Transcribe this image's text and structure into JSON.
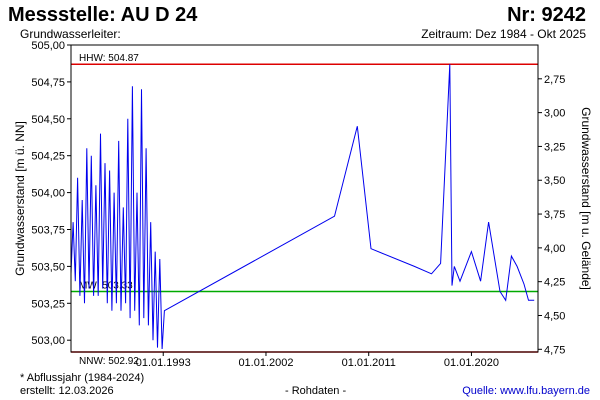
{
  "header": {
    "title": "Messstelle: AU D 24",
    "number": "Nr: 9242",
    "subtitle_left": "Grundwasserleiter:",
    "subtitle_right": "Zeitraum: Dez 1984 - Okt 2025"
  },
  "footer": {
    "note": "* Abflussjahr (1984-2024)",
    "created_label": "erstellt:",
    "created_date": "12.03.2026",
    "raw_label": "- Rohdaten -",
    "source_label": "Quelle:",
    "source_url": "www.lfu.bayern.de"
  },
  "colors": {
    "series": "#0000ee",
    "hhw": "#dd0000",
    "nnw": "#dd0000",
    "mw": "#00aa00",
    "axes": "#000000"
  },
  "chart_data": {
    "type": "line",
    "ylabel": "Grundwasserstand [m ü. NN]",
    "y2label": "Grundwasserstand [m u. Gelände]",
    "ylim": [
      502.92,
      505.0
    ],
    "y2lim": [
      2.5,
      4.77
    ],
    "yticks": [
      "505,00",
      "504,75",
      "504,50",
      "504,25",
      "504,00",
      "503,75",
      "503,50",
      "503,25",
      "503,00"
    ],
    "yticks_values": [
      505.0,
      504.75,
      504.5,
      504.25,
      504.0,
      503.75,
      503.5,
      503.25,
      503.0
    ],
    "y2ticks": [
      "2,75",
      "3,00",
      "3,25",
      "3,50",
      "3,75",
      "4,00",
      "4,25",
      "4,50",
      "4,75"
    ],
    "y2ticks_values": [
      2.75,
      3.0,
      3.25,
      3.5,
      3.75,
      4.0,
      4.25,
      4.5,
      4.75
    ],
    "xlim": [
      1984.92,
      2025.83
    ],
    "xticks": [
      "01.01.1993",
      "01.01.2002",
      "01.01.2011",
      "01.01.2020"
    ],
    "xticks_values": [
      1993.0,
      2002.0,
      2011.0,
      2020.0
    ],
    "grid": false,
    "reference_lines": [
      {
        "label": "HHW: 504.87",
        "value": 504.87,
        "color": "hhw"
      },
      {
        "label": "MW: 503.33",
        "value": 503.33,
        "color": "mw"
      },
      {
        "label": "NNW: 502.92",
        "value": 502.92,
        "color": "nnw"
      }
    ],
    "series": [
      {
        "x": [
          1984.92,
          1985.1,
          1985.3,
          1985.5,
          1985.7,
          1985.9,
          1986.1,
          1986.3,
          1986.5,
          1986.7,
          1986.9,
          1987.1,
          1987.3,
          1987.5,
          1987.7,
          1987.9,
          1988.1,
          1988.3,
          1988.5,
          1988.7,
          1988.9,
          1989.1,
          1989.3,
          1989.5,
          1989.7,
          1989.9,
          1990.1,
          1990.3,
          1990.5,
          1990.7,
          1990.9,
          1991.1,
          1991.3,
          1991.5,
          1991.7,
          1991.9,
          1992.1,
          1992.3,
          1992.5,
          1992.7,
          1992.9,
          1993.1,
          2008.0,
          2010.0,
          2011.2,
          2015.0,
          2016.5,
          2017.3,
          2018.1,
          2018.3,
          2018.5,
          2019.0,
          2020.0,
          2020.8,
          2021.5,
          2022.5,
          2023.0,
          2023.5,
          2024.0,
          2024.6,
          2025.0,
          2025.5
        ],
        "y": [
          503.45,
          503.8,
          503.4,
          504.1,
          503.3,
          503.95,
          503.25,
          504.3,
          503.35,
          504.25,
          503.3,
          504.05,
          503.3,
          504.4,
          503.35,
          504.2,
          503.25,
          504.15,
          503.2,
          504.0,
          503.25,
          504.35,
          503.2,
          503.9,
          503.25,
          504.5,
          503.15,
          504.72,
          503.2,
          504.0,
          503.1,
          504.7,
          503.15,
          504.3,
          503.1,
          503.8,
          503.0,
          503.6,
          502.95,
          503.55,
          502.94,
          503.2,
          503.84,
          504.45,
          503.62,
          503.5,
          503.45,
          503.52,
          504.87,
          503.37,
          503.5,
          503.4,
          503.6,
          503.4,
          503.8,
          503.33,
          503.27,
          503.57,
          503.5,
          503.38,
          503.27,
          503.27
        ]
      }
    ]
  }
}
